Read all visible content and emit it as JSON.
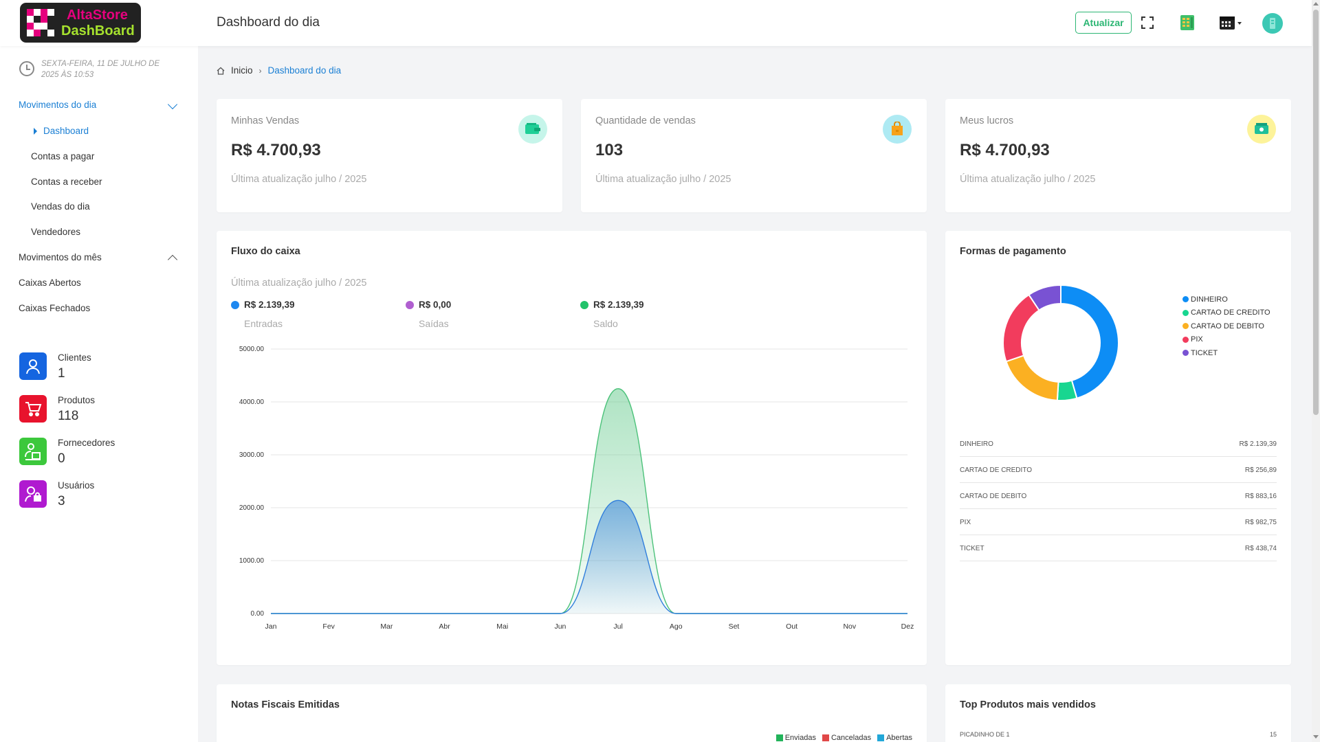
{
  "logo": {
    "line1": "AltaStore",
    "line2": "DashBoard"
  },
  "header": {
    "title": "Dashboard do dia",
    "refresh_label": "Atualizar"
  },
  "sidebar": {
    "date": "SEXTA-FEIRA, 11 DE JULHO DE 2025 ÀS 10:53",
    "section_day": "Movimentos do dia",
    "day_items": [
      "Dashboard",
      "Contas a pagar",
      "Contas a receber",
      "Vendas do dia",
      "Vendedores"
    ],
    "section_month": "Movimentos do mês",
    "month_items": [
      "Caixas Abertos",
      "Caixas Fechados"
    ],
    "stats": [
      {
        "label": "Clientes",
        "value": "1",
        "color": "#1565e0",
        "icon": "user-icon"
      },
      {
        "label": "Produtos",
        "value": "118",
        "color": "#e8132d",
        "icon": "cart-icon"
      },
      {
        "label": "Fornecedores",
        "value": "0",
        "color": "#3cc83c",
        "icon": "supplier-icon"
      },
      {
        "label": "Usuários",
        "value": "3",
        "color": "#b01ad0",
        "icon": "user-lock-icon"
      }
    ]
  },
  "breadcrumb": {
    "home": "Inicio",
    "current": "Dashboard do dia"
  },
  "kpis": [
    {
      "label": "Minhas Vendas",
      "value": "R$ 4.700,93",
      "sub": "Última atualização julho / 2025",
      "icon": "wallet-icon",
      "icon_bg": "#c6f5ea",
      "icon_color": "#1fcf97"
    },
    {
      "label": "Quantidade de vendas",
      "value": "103",
      "sub": "Última atualização julho / 2025",
      "icon": "bag-icon",
      "icon_bg": "#aeeaf3",
      "icon_color": "#f7a21b"
    },
    {
      "label": "Meus lucros",
      "value": "R$ 4.700,93",
      "sub": "Última atualização julho / 2025",
      "icon": "money-icon",
      "icon_bg": "#fdf39a",
      "icon_color": "#1fbf9a"
    }
  ],
  "cashflow": {
    "title": "Fluxo do caixa",
    "sub": "Última atualização julho / 2025",
    "legend": [
      {
        "value": "R$ 2.139,39",
        "label": "Entradas",
        "color": "#1e88f0"
      },
      {
        "value": "R$ 0,00",
        "label": "Saídas",
        "color": "#b05fd0"
      },
      {
        "value": "R$ 2.139,39",
        "label": "Saldo",
        "color": "#22c36a"
      }
    ]
  },
  "payments": {
    "title": "Formas de pagamento",
    "rows": [
      {
        "name": "DINHEIRO",
        "value": "R$ 2.139,39"
      },
      {
        "name": "CARTAO DE CREDITO",
        "value": "R$ 256,89"
      },
      {
        "name": "CARTAO DE DEBITO",
        "value": "R$ 883,16"
      },
      {
        "name": "PIX",
        "value": "R$ 982,75"
      },
      {
        "name": "TICKET",
        "value": "R$ 438,74"
      }
    ]
  },
  "nf": {
    "title": "Notas Fiscais Emitidas",
    "legend": [
      {
        "label": "Enviadas",
        "color": "#22b35a"
      },
      {
        "label": "Canceladas",
        "color": "#e04848"
      },
      {
        "label": "Abertas",
        "color": "#22a7d8"
      }
    ]
  },
  "top_products": {
    "title": "Top Produtos mais vendidos",
    "first_name": "PICADINHO DE 1",
    "first_qty": "15"
  },
  "chart_data": [
    {
      "type": "area",
      "categories": [
        "Jan",
        "Fev",
        "Mar",
        "Abr",
        "Mai",
        "Jun",
        "Jul",
        "Ago",
        "Set",
        "Out",
        "Nov",
        "Dez"
      ],
      "ylim": [
        0,
        5000
      ],
      "yticks": [
        "0.00",
        "1000.00",
        "2000.00",
        "3000.00",
        "4000.00",
        "5000.00"
      ],
      "series": [
        {
          "values": [
            0,
            0,
            0,
            0,
            0,
            0,
            4250,
            0,
            0,
            0,
            0,
            0
          ],
          "color": "#4cc27a"
        },
        {
          "values": [
            0,
            0,
            0,
            0,
            0,
            0,
            2139.39,
            0,
            0,
            0,
            0,
            0
          ],
          "color": "#2f7ddc"
        }
      ]
    },
    {
      "type": "pie",
      "labels": [
        "DINHEIRO",
        "CARTAO DE CREDITO",
        "CARTAO DE DEBITO",
        "PIX",
        "TICKET"
      ],
      "values": [
        2139.39,
        256.89,
        883.16,
        982.75,
        438.74
      ],
      "colors": [
        "#0d8df5",
        "#18d690",
        "#fbb022",
        "#f23c5d",
        "#7952d3"
      ]
    }
  ]
}
